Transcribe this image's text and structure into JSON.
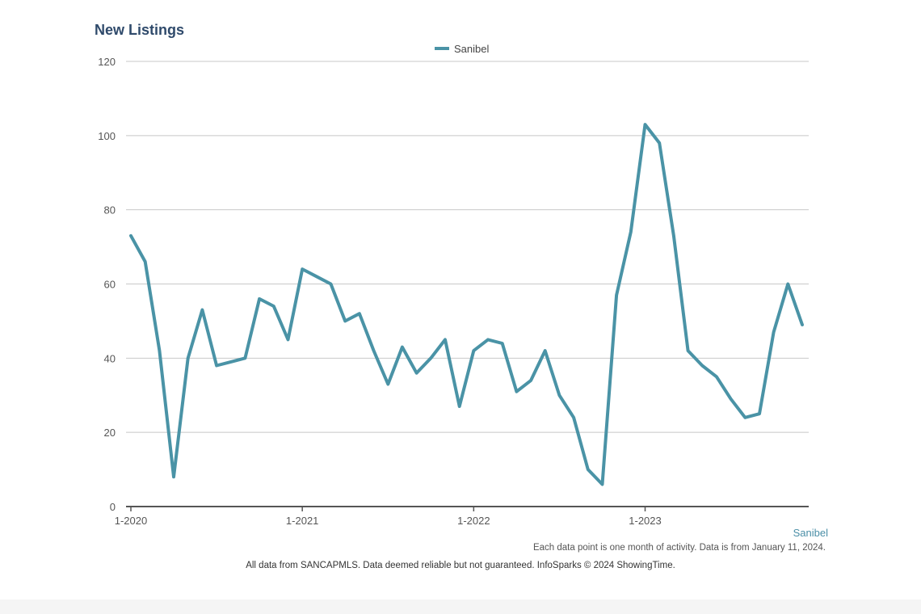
{
  "title": "New Listings",
  "corner_label": "Sanibel",
  "note": "Each data point is one month of activity. Data is from January 11, 2024.",
  "footer": "All data from SANCAPMLS. Data deemed reliable but not guaranteed. InfoSparks © 2024 ShowingTime.",
  "colors": {
    "series": "#4a93a6",
    "grid": "#c8c8c8",
    "axis": "#555555",
    "title": "#2f4a6b"
  },
  "chart_data": {
    "type": "line",
    "title": "New Listings",
    "xlabel": "",
    "ylabel": "",
    "ylim": [
      0,
      120
    ],
    "yticks": [
      "0",
      "20",
      "40",
      "60",
      "80",
      "100",
      "120"
    ],
    "xticks": [
      "1-2020",
      "1-2021",
      "1-2022",
      "1-2023"
    ],
    "grid": true,
    "legend_position": "top-center",
    "x": [
      "2020-01",
      "2020-02",
      "2020-03",
      "2020-04",
      "2020-05",
      "2020-06",
      "2020-07",
      "2020-08",
      "2020-09",
      "2020-10",
      "2020-11",
      "2020-12",
      "2021-01",
      "2021-02",
      "2021-03",
      "2021-04",
      "2021-05",
      "2021-06",
      "2021-07",
      "2021-08",
      "2021-09",
      "2021-10",
      "2021-11",
      "2021-12",
      "2022-01",
      "2022-02",
      "2022-03",
      "2022-04",
      "2022-05",
      "2022-06",
      "2022-07",
      "2022-08",
      "2022-09",
      "2022-10",
      "2022-11",
      "2022-12",
      "2023-01",
      "2023-02",
      "2023-03",
      "2023-04",
      "2023-05",
      "2023-06",
      "2023-07",
      "2023-08",
      "2023-09",
      "2023-10",
      "2023-11",
      "2023-12"
    ],
    "series": [
      {
        "name": "Sanibel",
        "values": [
          73,
          66,
          42,
          8,
          40,
          53,
          38,
          39,
          40,
          56,
          54,
          45,
          64,
          62,
          60,
          50,
          52,
          42,
          33,
          43,
          36,
          40,
          45,
          27,
          42,
          45,
          44,
          31,
          34,
          42,
          30,
          24,
          10,
          6,
          57,
          74,
          103,
          98,
          73,
          42,
          38,
          35,
          29,
          24,
          25,
          47,
          60,
          49
        ]
      }
    ]
  }
}
